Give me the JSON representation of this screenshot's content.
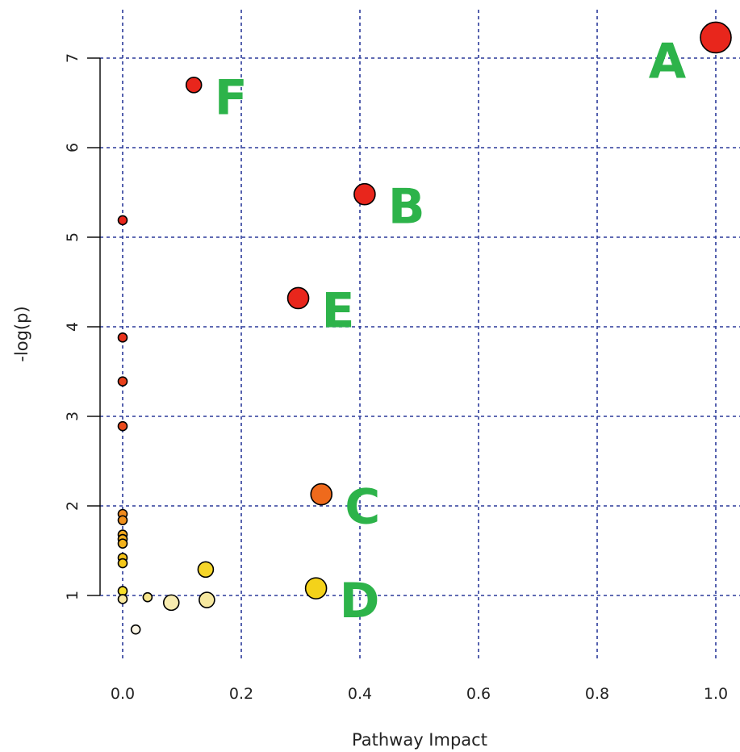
{
  "chart_data": {
    "type": "scatter",
    "title": "",
    "xlabel": "Pathway Impact",
    "ylabel": "-log(p)",
    "xlim": [
      0,
      1.0
    ],
    "ylim": [
      1,
      7
    ],
    "grid": true,
    "x_ticks": [
      "0.0",
      "0.2",
      "0.4",
      "0.6",
      "0.8",
      "1.0"
    ],
    "y_ticks": [
      "1",
      "2",
      "3",
      "4",
      "5",
      "6",
      "7"
    ],
    "label_color": "#2db34a",
    "points": [
      {
        "x": 1.0,
        "y": 7.23,
        "label": "A",
        "color": "#e8261c",
        "size": "large"
      },
      {
        "x": 0.408,
        "y": 5.48,
        "label": "B",
        "color": "#e8261c",
        "size": "medium"
      },
      {
        "x": 0.335,
        "y": 2.13,
        "label": "C",
        "color": "#ef6a1c",
        "size": "medium"
      },
      {
        "x": 0.326,
        "y": 1.08,
        "label": "D",
        "color": "#f4d21a",
        "size": "medium"
      },
      {
        "x": 0.296,
        "y": 4.32,
        "label": "E",
        "color": "#e8261c",
        "size": "medium"
      },
      {
        "x": 0.12,
        "y": 6.7,
        "label": "F",
        "color": "#e8261c",
        "size": "small"
      },
      {
        "x": 0.0,
        "y": 5.19,
        "label": "",
        "color": "#e8261c",
        "size": "tiny"
      },
      {
        "x": 0.0,
        "y": 3.88,
        "label": "",
        "color": "#e8331c",
        "size": "tiny"
      },
      {
        "x": 0.0,
        "y": 3.39,
        "label": "",
        "color": "#e8401c",
        "size": "tiny"
      },
      {
        "x": 0.0,
        "y": 2.89,
        "label": "",
        "color": "#ea4a1c",
        "size": "tiny"
      },
      {
        "x": 0.0,
        "y": 1.91,
        "label": "",
        "color": "#f08a1c",
        "size": "tiny"
      },
      {
        "x": 0.0,
        "y": 1.84,
        "label": "",
        "color": "#f0901c",
        "size": "tiny"
      },
      {
        "x": 0.0,
        "y": 1.68,
        "label": "",
        "color": "#f2a81c",
        "size": "tiny"
      },
      {
        "x": 0.0,
        "y": 1.63,
        "label": "",
        "color": "#f2ae1c",
        "size": "tiny"
      },
      {
        "x": 0.0,
        "y": 1.58,
        "label": "",
        "color": "#f2b21c",
        "size": "tiny"
      },
      {
        "x": 0.0,
        "y": 1.42,
        "label": "",
        "color": "#f4c21a",
        "size": "tiny"
      },
      {
        "x": 0.0,
        "y": 1.36,
        "label": "",
        "color": "#f4c81a",
        "size": "tiny"
      },
      {
        "x": 0.0,
        "y": 1.05,
        "label": "",
        "color": "#f6de2a",
        "size": "tiny"
      },
      {
        "x": 0.0,
        "y": 0.96,
        "label": "",
        "color": "#f8e8a0",
        "size": "tiny"
      },
      {
        "x": 0.042,
        "y": 0.98,
        "label": "",
        "color": "#f6e48a",
        "size": "tiny"
      },
      {
        "x": 0.082,
        "y": 0.92,
        "label": "",
        "color": "#f8ecb0",
        "size": "small"
      },
      {
        "x": 0.14,
        "y": 1.29,
        "label": "",
        "color": "#f6d62a",
        "size": "small"
      },
      {
        "x": 0.142,
        "y": 0.95,
        "label": "",
        "color": "#f6e8a0",
        "size": "small"
      },
      {
        "x": 0.022,
        "y": 0.62,
        "label": "",
        "color": "#fbf6e6",
        "size": "tiny"
      }
    ]
  }
}
